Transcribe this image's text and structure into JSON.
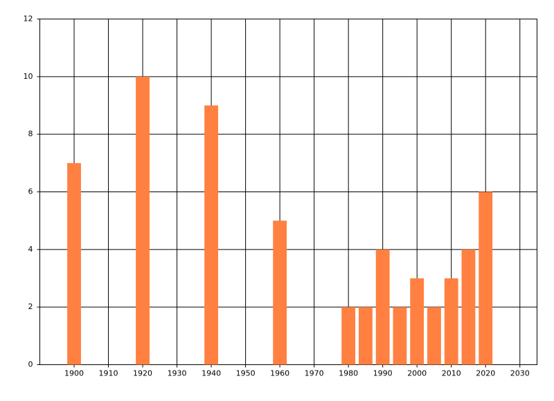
{
  "chart_data": {
    "type": "bar",
    "color": "#ff8040",
    "x": [
      1900,
      1920,
      1940,
      1960,
      1980,
      1985,
      1990,
      1995,
      2000,
      2005,
      2010,
      2015,
      2020
    ],
    "values": [
      7,
      10,
      9,
      5,
      2,
      2,
      4,
      2,
      3,
      2,
      3,
      4,
      6
    ],
    "xlim": [
      1890,
      2035
    ],
    "xticks": [
      1900,
      1910,
      1920,
      1930,
      1940,
      1950,
      1960,
      1970,
      1980,
      1990,
      2000,
      2010,
      2020,
      2030
    ],
    "ylim": [
      0,
      12
    ],
    "yticks": [
      0,
      2,
      4,
      6,
      8,
      10,
      12
    ],
    "grid": true
  }
}
